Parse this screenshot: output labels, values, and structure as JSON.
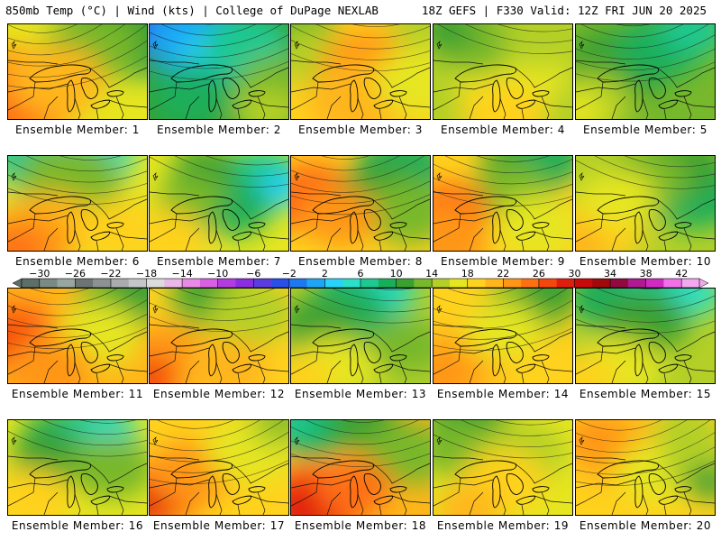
{
  "header": {
    "left": "850mb Temp (°C) | Wind (kts) | College of DuPage NEXLAB",
    "right": "18Z GEFS | F330 Valid: 12Z FRI JUN 20 2025"
  },
  "colorbar": {
    "labels": [
      "−30",
      "−26",
      "−22",
      "−18",
      "−14",
      "−10",
      "−6",
      "−2",
      "2",
      "6",
      "10",
      "14",
      "18",
      "22",
      "26",
      "30",
      "34",
      "38",
      "42"
    ],
    "min": -32,
    "max": 44,
    "step": 2,
    "colors": [
      "#5e6e68",
      "#7a8a84",
      "#98a69f",
      "#6d7574",
      "#8c9192",
      "#a9acae",
      "#c4c6c8",
      "#dcdcdc",
      "#e9b8e6",
      "#e88ae6",
      "#d860e2",
      "#b33ce0",
      "#8a2ee0",
      "#5a3ce0",
      "#2a4fe8",
      "#1e78f0",
      "#1ea6f5",
      "#28d2f8",
      "#2ae0c8",
      "#1ec890",
      "#1aae5a",
      "#3aa030",
      "#78b82c",
      "#b4d028",
      "#e6e620",
      "#ffd21e",
      "#ffb61a",
      "#ff9616",
      "#ff7012",
      "#f5460e",
      "#e01e0e",
      "#c80a0a",
      "#a00a0a",
      "#900a40",
      "#b01a90",
      "#d02ac0",
      "#f070e8",
      "#f4a8f0"
    ]
  },
  "members": [
    {
      "label": "Ensemble Member: 1",
      "base": "#e6e620",
      "blobs": [
        [
          "#1aae5a",
          0.95,
          0.0,
          0.75
        ],
        [
          "#3aa030",
          0.8,
          0.1,
          0.6
        ],
        [
          "#78b82c",
          0.6,
          0.25,
          0.5
        ],
        [
          "#ff9616",
          0.05,
          0.75,
          0.7
        ],
        [
          "#ff7012",
          0.0,
          0.9,
          0.45
        ],
        [
          "#ffb61a",
          0.35,
          0.6,
          0.5
        ]
      ]
    },
    {
      "label": "Ensemble Member: 2",
      "base": "#3aa030",
      "blobs": [
        [
          "#2a4fe8",
          0.0,
          0.0,
          0.45
        ],
        [
          "#1ea6f5",
          0.35,
          0.15,
          0.55
        ],
        [
          "#28d2f8",
          0.45,
          0.35,
          0.35
        ],
        [
          "#1ec890",
          0.7,
          0.2,
          0.45
        ],
        [
          "#78b82c",
          0.95,
          0.7,
          0.5
        ],
        [
          "#b4d028",
          0.85,
          0.95,
          0.35
        ],
        [
          "#1aae5a",
          0.3,
          0.75,
          0.45
        ]
      ]
    },
    {
      "label": "Ensemble Member: 3",
      "base": "#ffd21e",
      "blobs": [
        [
          "#78b82c",
          0.0,
          0.0,
          0.45
        ],
        [
          "#b4d028",
          0.15,
          0.35,
          0.4
        ],
        [
          "#ff9616",
          0.55,
          0.45,
          0.5
        ],
        [
          "#ffb61a",
          0.5,
          0.8,
          0.55
        ],
        [
          "#e6e620",
          0.95,
          0.6,
          0.5
        ],
        [
          "#b4d028",
          0.95,
          0.0,
          0.35
        ]
      ]
    },
    {
      "label": "Ensemble Member: 4",
      "base": "#b4d028",
      "blobs": [
        [
          "#e6e620",
          0.55,
          0.5,
          0.6
        ],
        [
          "#78b82c",
          0.3,
          0.2,
          0.45
        ],
        [
          "#3aa030",
          0.1,
          0.05,
          0.3
        ],
        [
          "#ffd21e",
          0.5,
          0.95,
          0.45
        ],
        [
          "#b4d028",
          0.75,
          0.2,
          0.35
        ]
      ]
    },
    {
      "label": "Ensemble Member: 5",
      "base": "#78b82c",
      "blobs": [
        [
          "#3aa030",
          0.3,
          0.45,
          0.55
        ],
        [
          "#1aae5a",
          0.6,
          0.25,
          0.45
        ],
        [
          "#1ec890",
          0.85,
          0.05,
          0.35
        ],
        [
          "#b4d028",
          0.1,
          0.85,
          0.45
        ],
        [
          "#e6e620",
          0.0,
          0.95,
          0.3
        ]
      ]
    },
    {
      "label": "Ensemble Member: 6",
      "base": "#e6e620",
      "blobs": [
        [
          "#1ec890",
          0.3,
          0.0,
          0.6
        ],
        [
          "#2ae0c8",
          0.6,
          0.0,
          0.45
        ],
        [
          "#78b82c",
          0.45,
          0.25,
          0.55
        ],
        [
          "#ffb61a",
          0.3,
          0.75,
          0.5
        ],
        [
          "#ff9616",
          0.1,
          0.95,
          0.5
        ],
        [
          "#ff7012",
          0.05,
          1.0,
          0.3
        ],
        [
          "#ffd21e",
          0.8,
          0.8,
          0.45
        ]
      ]
    },
    {
      "label": "Ensemble Member: 7",
      "base": "#e6e620",
      "blobs": [
        [
          "#1ec890",
          0.8,
          0.25,
          0.45
        ],
        [
          "#28d2f8",
          0.95,
          0.35,
          0.25
        ],
        [
          "#1aae5a",
          0.6,
          0.55,
          0.4
        ],
        [
          "#3aa030",
          0.4,
          0.15,
          0.35
        ],
        [
          "#78b82c",
          0.3,
          0.45,
          0.35
        ],
        [
          "#ffd21e",
          0.1,
          0.9,
          0.45
        ]
      ]
    },
    {
      "label": "Ensemble Member: 8",
      "base": "#ffd21e",
      "blobs": [
        [
          "#f5460e",
          0.0,
          0.5,
          0.35
        ],
        [
          "#ff7012",
          0.15,
          0.4,
          0.45
        ],
        [
          "#1aae5a",
          0.8,
          0.15,
          0.5
        ],
        [
          "#3aa030",
          0.65,
          0.4,
          0.45
        ],
        [
          "#78b82c",
          0.85,
          0.6,
          0.45
        ],
        [
          "#ff9616",
          0.35,
          0.65,
          0.4
        ]
      ]
    },
    {
      "label": "Ensemble Member: 9",
      "base": "#ffd21e",
      "blobs": [
        [
          "#3aa030",
          0.7,
          0.05,
          0.5
        ],
        [
          "#1aae5a",
          0.85,
          0.0,
          0.35
        ],
        [
          "#78b82c",
          0.55,
          0.35,
          0.4
        ],
        [
          "#ff7012",
          0.1,
          0.6,
          0.45
        ],
        [
          "#ff9616",
          0.05,
          0.9,
          0.5
        ],
        [
          "#e6e620",
          0.75,
          0.75,
          0.45
        ]
      ]
    },
    {
      "label": "Ensemble Member: 10",
      "base": "#b4d028",
      "blobs": [
        [
          "#1aae5a",
          0.85,
          0.4,
          0.5
        ],
        [
          "#3aa030",
          0.75,
          0.1,
          0.45
        ],
        [
          "#78b82c",
          0.5,
          0.25,
          0.45
        ],
        [
          "#ffd21e",
          0.15,
          0.8,
          0.5
        ],
        [
          "#ffb61a",
          0.0,
          0.95,
          0.35
        ],
        [
          "#e6e620",
          0.3,
          0.45,
          0.4
        ]
      ]
    },
    {
      "label": "Ensemble Member: 11",
      "base": "#ffb61a",
      "blobs": [
        [
          "#ff7012",
          0.05,
          0.5,
          0.5
        ],
        [
          "#f5460e",
          0.0,
          0.55,
          0.3
        ],
        [
          "#78b82c",
          0.85,
          0.1,
          0.5
        ],
        [
          "#3aa030",
          0.95,
          0.0,
          0.35
        ],
        [
          "#e6e620",
          0.65,
          0.5,
          0.45
        ],
        [
          "#ff9616",
          0.3,
          0.85,
          0.45
        ]
      ]
    },
    {
      "label": "Ensemble Member: 12",
      "base": "#ffd21e",
      "blobs": [
        [
          "#78b82c",
          0.45,
          0.1,
          0.45
        ],
        [
          "#3aa030",
          0.4,
          0.0,
          0.3
        ],
        [
          "#b4d028",
          0.75,
          0.25,
          0.45
        ],
        [
          "#ff9616",
          0.1,
          0.75,
          0.5
        ],
        [
          "#f5460e",
          0.0,
          0.95,
          0.3
        ],
        [
          "#ffb61a",
          0.55,
          0.85,
          0.45
        ]
      ]
    },
    {
      "label": "Ensemble Member: 13",
      "base": "#b4d028",
      "blobs": [
        [
          "#1ec890",
          0.55,
          0.0,
          0.5
        ],
        [
          "#2ae0c8",
          0.65,
          0.05,
          0.3
        ],
        [
          "#1aae5a",
          0.4,
          0.25,
          0.45
        ],
        [
          "#3aa030",
          0.2,
          0.4,
          0.4
        ],
        [
          "#e6e620",
          0.3,
          0.85,
          0.45
        ],
        [
          "#ffd21e",
          0.05,
          0.95,
          0.35
        ],
        [
          "#78b82c",
          0.85,
          0.6,
          0.4
        ]
      ]
    },
    {
      "label": "Ensemble Member: 14",
      "base": "#ffd21e",
      "blobs": [
        [
          "#78b82c",
          0.7,
          0.15,
          0.45
        ],
        [
          "#3aa030",
          0.85,
          0.0,
          0.35
        ],
        [
          "#ffb61a",
          0.2,
          0.75,
          0.5
        ],
        [
          "#ff9616",
          0.05,
          0.9,
          0.4
        ],
        [
          "#e6e620",
          0.5,
          0.45,
          0.4
        ]
      ]
    },
    {
      "label": "Ensemble Member: 15",
      "base": "#b4d028",
      "blobs": [
        [
          "#1aae5a",
          0.3,
          0.1,
          0.5
        ],
        [
          "#1ec890",
          0.6,
          0.0,
          0.4
        ],
        [
          "#2ae0c8",
          0.85,
          0.05,
          0.3
        ],
        [
          "#3aa030",
          0.5,
          0.35,
          0.45
        ],
        [
          "#e6e620",
          0.3,
          0.85,
          0.45
        ],
        [
          "#ffd21e",
          0.05,
          0.95,
          0.35
        ]
      ]
    },
    {
      "label": "Ensemble Member: 16",
      "base": "#e6e620",
      "blobs": [
        [
          "#1aae5a",
          0.4,
          0.2,
          0.45
        ],
        [
          "#1ec890",
          0.65,
          0.1,
          0.4
        ],
        [
          "#2ae0c8",
          0.75,
          0.15,
          0.25
        ],
        [
          "#3aa030",
          0.3,
          0.4,
          0.4
        ],
        [
          "#78b82c",
          0.75,
          0.5,
          0.45
        ],
        [
          "#ffd21e",
          0.15,
          0.85,
          0.45
        ]
      ]
    },
    {
      "label": "Ensemble Member: 17",
      "base": "#ffd21e",
      "blobs": [
        [
          "#ff7012",
          0.1,
          0.75,
          0.45
        ],
        [
          "#f5460e",
          0.0,
          0.85,
          0.35
        ],
        [
          "#e01e0e",
          0.0,
          0.9,
          0.2
        ],
        [
          "#ff9616",
          0.3,
          0.55,
          0.45
        ],
        [
          "#e6e620",
          0.75,
          0.3,
          0.5
        ],
        [
          "#b4d028",
          0.95,
          0.05,
          0.35
        ],
        [
          "#78b82c",
          0.95,
          0.0,
          0.2
        ]
      ]
    },
    {
      "label": "Ensemble Member: 18",
      "base": "#ffb61a",
      "blobs": [
        [
          "#1aae5a",
          0.15,
          0.05,
          0.45
        ],
        [
          "#1ec890",
          0.0,
          0.0,
          0.3
        ],
        [
          "#3aa030",
          0.55,
          0.05,
          0.35
        ],
        [
          "#78b82c",
          0.85,
          0.35,
          0.45
        ],
        [
          "#f5460e",
          0.2,
          0.85,
          0.5
        ],
        [
          "#e01e0e",
          0.1,
          0.95,
          0.35
        ],
        [
          "#ff7012",
          0.45,
          0.7,
          0.4
        ]
      ]
    },
    {
      "label": "Ensemble Member: 19",
      "base": "#e6e620",
      "blobs": [
        [
          "#3aa030",
          0.25,
          0.05,
          0.45
        ],
        [
          "#78b82c",
          0.15,
          0.3,
          0.4
        ],
        [
          "#b4d028",
          0.65,
          0.35,
          0.45
        ],
        [
          "#ffd21e",
          0.5,
          0.65,
          0.45
        ],
        [
          "#ffb61a",
          0.25,
          0.95,
          0.35
        ]
      ]
    },
    {
      "label": "Ensemble Member: 20",
      "base": "#ffd21e",
      "blobs": [
        [
          "#ffb61a",
          0.3,
          0.3,
          0.55
        ],
        [
          "#e6e620",
          0.6,
          0.55,
          0.45
        ],
        [
          "#b4d028",
          0.9,
          0.45,
          0.4
        ],
        [
          "#3aa030",
          0.95,
          0.65,
          0.25
        ],
        [
          "#ff9616",
          0.15,
          0.2,
          0.35
        ],
        [
          "#b4d028",
          0.8,
          0.1,
          0.35
        ]
      ]
    }
  ]
}
